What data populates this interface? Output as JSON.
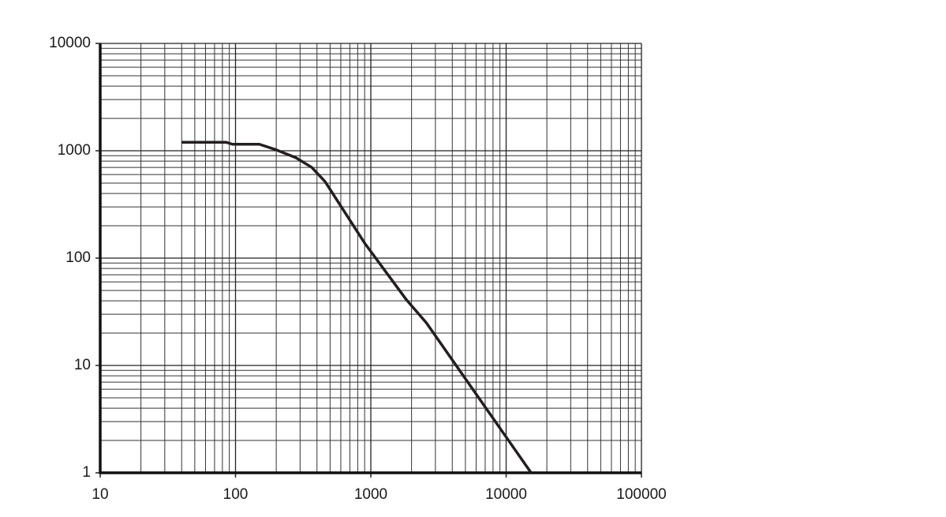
{
  "chart_data": {
    "type": "line",
    "log_x": true,
    "log_y": true,
    "grid": true,
    "minor_grid": true,
    "x": [
      40,
      85,
      95,
      150,
      200,
      280,
      366,
      459,
      900,
      1830,
      2570,
      15300
    ],
    "series": [
      {
        "color": "#231f20",
        "values": [
          1200,
          1200,
          1150,
          1150,
          1020,
          860,
          700,
          516,
          138,
          41,
          25,
          1
        ]
      }
    ],
    "xlim": [
      10,
      100000
    ],
    "xticks": [
      10,
      100,
      1000,
      10000,
      100000
    ],
    "ylim": [
      1,
      10000
    ],
    "yticks": [
      1,
      10,
      100,
      1000,
      10000
    ]
  }
}
